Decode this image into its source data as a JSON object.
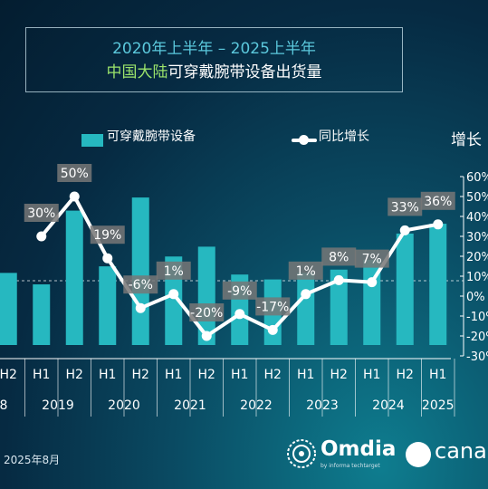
{
  "title": {
    "line1": "2020年上半年 – 2025上半年",
    "line2_green": "中国大陆",
    "line2_white": "可穿戴腕带设备出货量"
  },
  "legend": {
    "bar": "可穿戴腕带设备",
    "line": "同比增长"
  },
  "y2_title": "增长",
  "footer": {
    "date": "2025年8月",
    "omdia": "Omdia",
    "omdia_sub": "by informa techtarget",
    "canalys": "canal"
  },
  "colors": {
    "bar": "#26b8c0",
    "line": "#ffffff",
    "label_bg": "#777777"
  },
  "chart_data": {
    "type": "bar",
    "categories": [
      "H2",
      "H1",
      "H2",
      "H1",
      "H2",
      "H1",
      "H2",
      "H1",
      "H2",
      "H1",
      "H2",
      "H1",
      "H2",
      "H1"
    ],
    "years": [
      {
        "label": "8",
        "span": [
          0,
          0
        ]
      },
      {
        "label": "2019",
        "span": [
          1,
          2
        ]
      },
      {
        "label": "2020",
        "span": [
          3,
          4
        ]
      },
      {
        "label": "2021",
        "span": [
          5,
          6
        ]
      },
      {
        "label": "2022",
        "span": [
          7,
          8
        ]
      },
      {
        "label": "2023",
        "span": [
          9,
          10
        ]
      },
      {
        "label": "2024",
        "span": [
          11,
          12
        ]
      },
      {
        "label": "2025",
        "span": [
          13,
          13
        ]
      }
    ],
    "bar_values": [
      22,
      18.5,
      41,
      24,
      45,
      27,
      30,
      21.5,
      20,
      22,
      23,
      26,
      34,
      37
    ],
    "growth_values": [
      null,
      30,
      50,
      19,
      -6,
      1,
      -20,
      -9,
      -17,
      1,
      8,
      7,
      33,
      36
    ],
    "growth_labels": [
      "",
      "30%",
      "50%",
      "19%",
      "-6%",
      "1%",
      "-20%",
      "-9%",
      "-17%",
      "1%",
      "8%",
      "7%",
      "33%",
      "36%"
    ],
    "y2_ticks": [
      "60%",
      "50%",
      "40%",
      "30%",
      "20%",
      "10%",
      "0%",
      "-10%",
      "-20%",
      "-30%"
    ],
    "y2_range": [
      -30,
      60
    ],
    "bar_range": [
      0,
      50
    ]
  }
}
